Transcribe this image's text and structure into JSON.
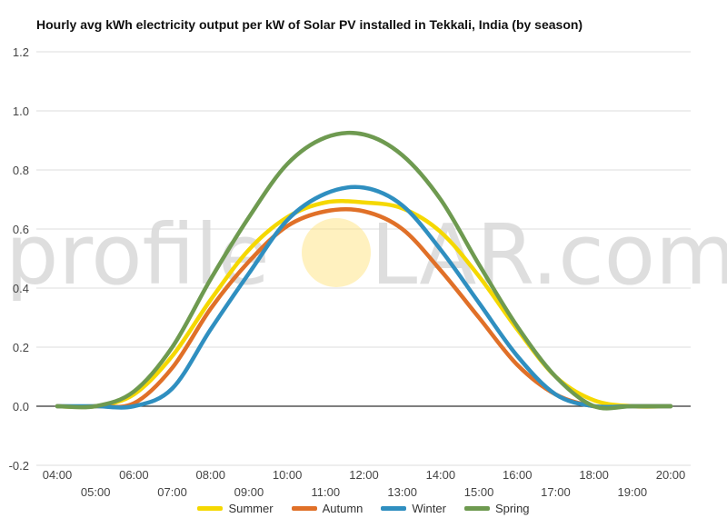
{
  "chart_data": {
    "type": "line",
    "title": "Hourly avg kWh electricity output per kW of Solar PV installed in Tekkali, India (by season)",
    "xlabel": "",
    "ylabel": "",
    "ylim": [
      -0.2,
      1.2
    ],
    "yticks": [
      "-0.2",
      "0.0",
      "0.2",
      "0.4",
      "0.6",
      "0.8",
      "1.0",
      "1.2"
    ],
    "ytick_values": [
      -0.2,
      0,
      0.2,
      0.4,
      0.6,
      0.8,
      1.0,
      1.2
    ],
    "grid": true,
    "legend_position": "bottom",
    "x": [
      "04:00",
      "05:00",
      "06:00",
      "07:00",
      "08:00",
      "09:00",
      "10:00",
      "11:00",
      "12:00",
      "13:00",
      "14:00",
      "15:00",
      "16:00",
      "17:00",
      "18:00",
      "19:00",
      "20:00"
    ],
    "series": [
      {
        "name": "Summer",
        "color": "#f5d800",
        "values": [
          0,
          0,
          0.04,
          0.17,
          0.36,
          0.53,
          0.64,
          0.69,
          0.69,
          0.67,
          0.59,
          0.44,
          0.26,
          0.1,
          0.02,
          0,
          0
        ]
      },
      {
        "name": "Autumn",
        "color": "#e07028",
        "values": [
          0,
          0,
          0.01,
          0.13,
          0.33,
          0.49,
          0.61,
          0.66,
          0.66,
          0.6,
          0.46,
          0.3,
          0.14,
          0.04,
          0,
          0,
          0
        ]
      },
      {
        "name": "Winter",
        "color": "#2f8fc0",
        "values": [
          0,
          0,
          0,
          0.06,
          0.26,
          0.45,
          0.63,
          0.72,
          0.74,
          0.68,
          0.53,
          0.35,
          0.17,
          0.04,
          0,
          0,
          0
        ]
      },
      {
        "name": "Spring",
        "color": "#6e9a50",
        "values": [
          0,
          0,
          0.05,
          0.2,
          0.43,
          0.64,
          0.82,
          0.91,
          0.92,
          0.85,
          0.7,
          0.48,
          0.27,
          0.1,
          0,
          0,
          0
        ]
      }
    ]
  },
  "watermark": {
    "left": "profile",
    "right": "LAR.com",
    "sun_color": "#ffe070"
  }
}
